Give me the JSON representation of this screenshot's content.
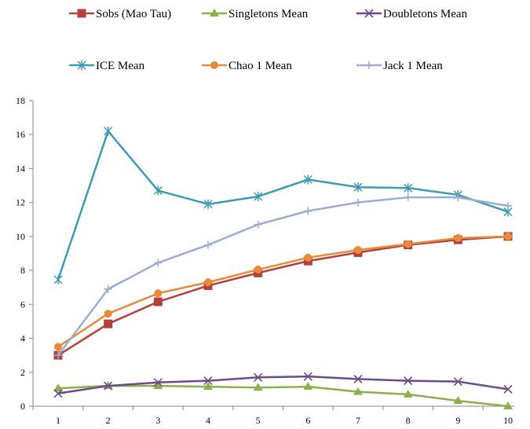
{
  "chart_data": {
    "type": "line",
    "title": "",
    "xlabel": "",
    "ylabel": "",
    "x": [
      1,
      2,
      3,
      4,
      5,
      6,
      7,
      8,
      9,
      10
    ],
    "ylim": [
      0,
      18
    ],
    "yticks": [
      0,
      2,
      4,
      6,
      8,
      10,
      12,
      14,
      16,
      18
    ],
    "grid": false,
    "legend_position": "top",
    "series": [
      {
        "name": "Sobs (Mao Tau)",
        "color": "#b5413b",
        "marker": "square",
        "values": [
          3.0,
          4.85,
          6.15,
          7.1,
          7.85,
          8.55,
          9.05,
          9.5,
          9.8,
          10.0
        ]
      },
      {
        "name": "Singletons Mean",
        "color": "#8cb04b",
        "marker": "triangle",
        "values": [
          1.05,
          1.2,
          1.2,
          1.15,
          1.1,
          1.15,
          0.85,
          0.7,
          0.32,
          0.0
        ]
      },
      {
        "name": "Doubletons Mean",
        "color": "#6e4a8a",
        "marker": "x",
        "values": [
          0.75,
          1.2,
          1.4,
          1.5,
          1.7,
          1.75,
          1.6,
          1.5,
          1.45,
          1.0
        ]
      },
      {
        "name": "ICE Mean",
        "color": "#3b9cb4",
        "marker": "asterisk",
        "values": [
          7.45,
          16.2,
          12.7,
          11.9,
          12.35,
          13.35,
          12.9,
          12.85,
          12.45,
          11.45
        ]
      },
      {
        "name": "Chao 1 Mean",
        "color": "#e68a3c",
        "marker": "circle",
        "values": [
          3.5,
          5.45,
          6.65,
          7.3,
          8.05,
          8.75,
          9.2,
          9.55,
          9.9,
          10.0
        ]
      },
      {
        "name": "Jack 1 Mean",
        "color": "#9badd1",
        "marker": "plus",
        "values": [
          3.0,
          6.9,
          8.45,
          9.5,
          10.7,
          11.5,
          12.0,
          12.3,
          12.3,
          11.8
        ]
      }
    ]
  }
}
